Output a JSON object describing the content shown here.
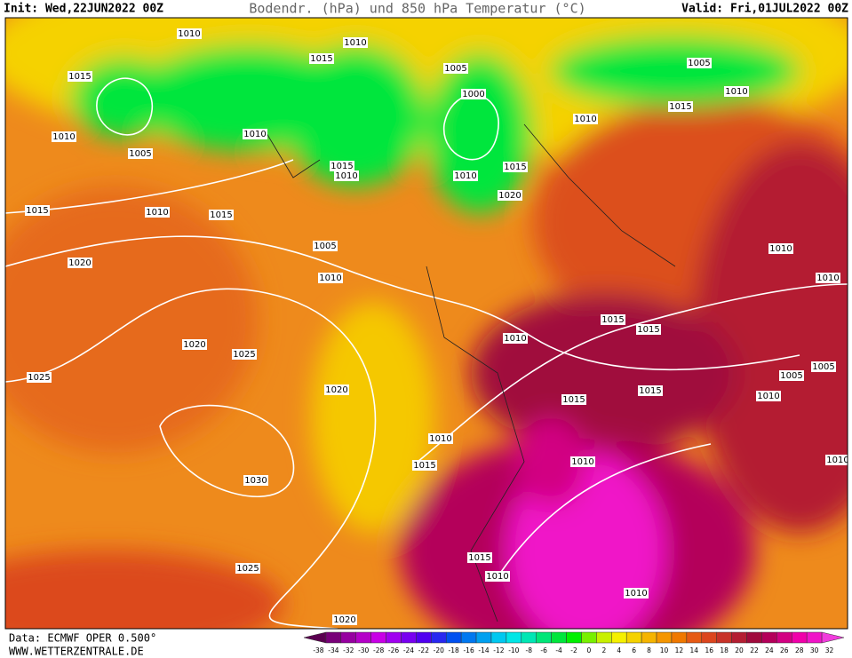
{
  "header": {
    "init": "Init: Wed,22JUN2022 00Z",
    "title": "Bodendr. (hPa) und 850 hPa Temperatur (°C)",
    "valid": "Valid: Fri,01JUL2022 00Z"
  },
  "isobar_labels": [
    1010,
    1010,
    1015,
    1015,
    1005,
    1005,
    1010,
    1015,
    1010,
    1000,
    1010,
    1010,
    1005,
    1015,
    1010,
    1010,
    1015,
    1020,
    1015,
    1010,
    1015,
    1005,
    1010,
    1020,
    1010,
    1010,
    1015,
    1015,
    1010,
    1020,
    1025,
    1025,
    1020,
    1015,
    1015,
    1005,
    1005,
    1010,
    1010,
    1015,
    1010,
    1030,
    1015,
    1010,
    1025,
    1010,
    1020,
    1010
  ],
  "colorbar": {
    "ticks": [
      -38,
      -34,
      -32,
      -30,
      -28,
      -26,
      -24,
      -22,
      -20,
      -18,
      -16,
      -14,
      -12,
      -10,
      -8,
      -6,
      -4,
      -2,
      0,
      2,
      4,
      6,
      8,
      10,
      12,
      14,
      16,
      18,
      20,
      22,
      24,
      26,
      28,
      30,
      32
    ],
    "colors": [
      "#5a0050",
      "#780078",
      "#9600a0",
      "#b400c8",
      "#c800e6",
      "#a000f0",
      "#7800f0",
      "#5000f0",
      "#2828f0",
      "#0050f0",
      "#0078f0",
      "#00a0f0",
      "#00c8f0",
      "#00e6e6",
      "#00e6b4",
      "#00e678",
      "#00e63c",
      "#00f000",
      "#78f000",
      "#c8f000",
      "#f5f000",
      "#f5d200",
      "#f5b400",
      "#f59600",
      "#f07800",
      "#e65a14",
      "#dc461e",
      "#c83228",
      "#b41e32",
      "#a00a3c",
      "#b4005a",
      "#d20082",
      "#f000aa",
      "#f014c8",
      "#f03cdc"
    ]
  },
  "footer": {
    "source": "Data: ECMWF OPER 0.500°",
    "website": "WWW.WETTERZENTRALE.DE"
  }
}
